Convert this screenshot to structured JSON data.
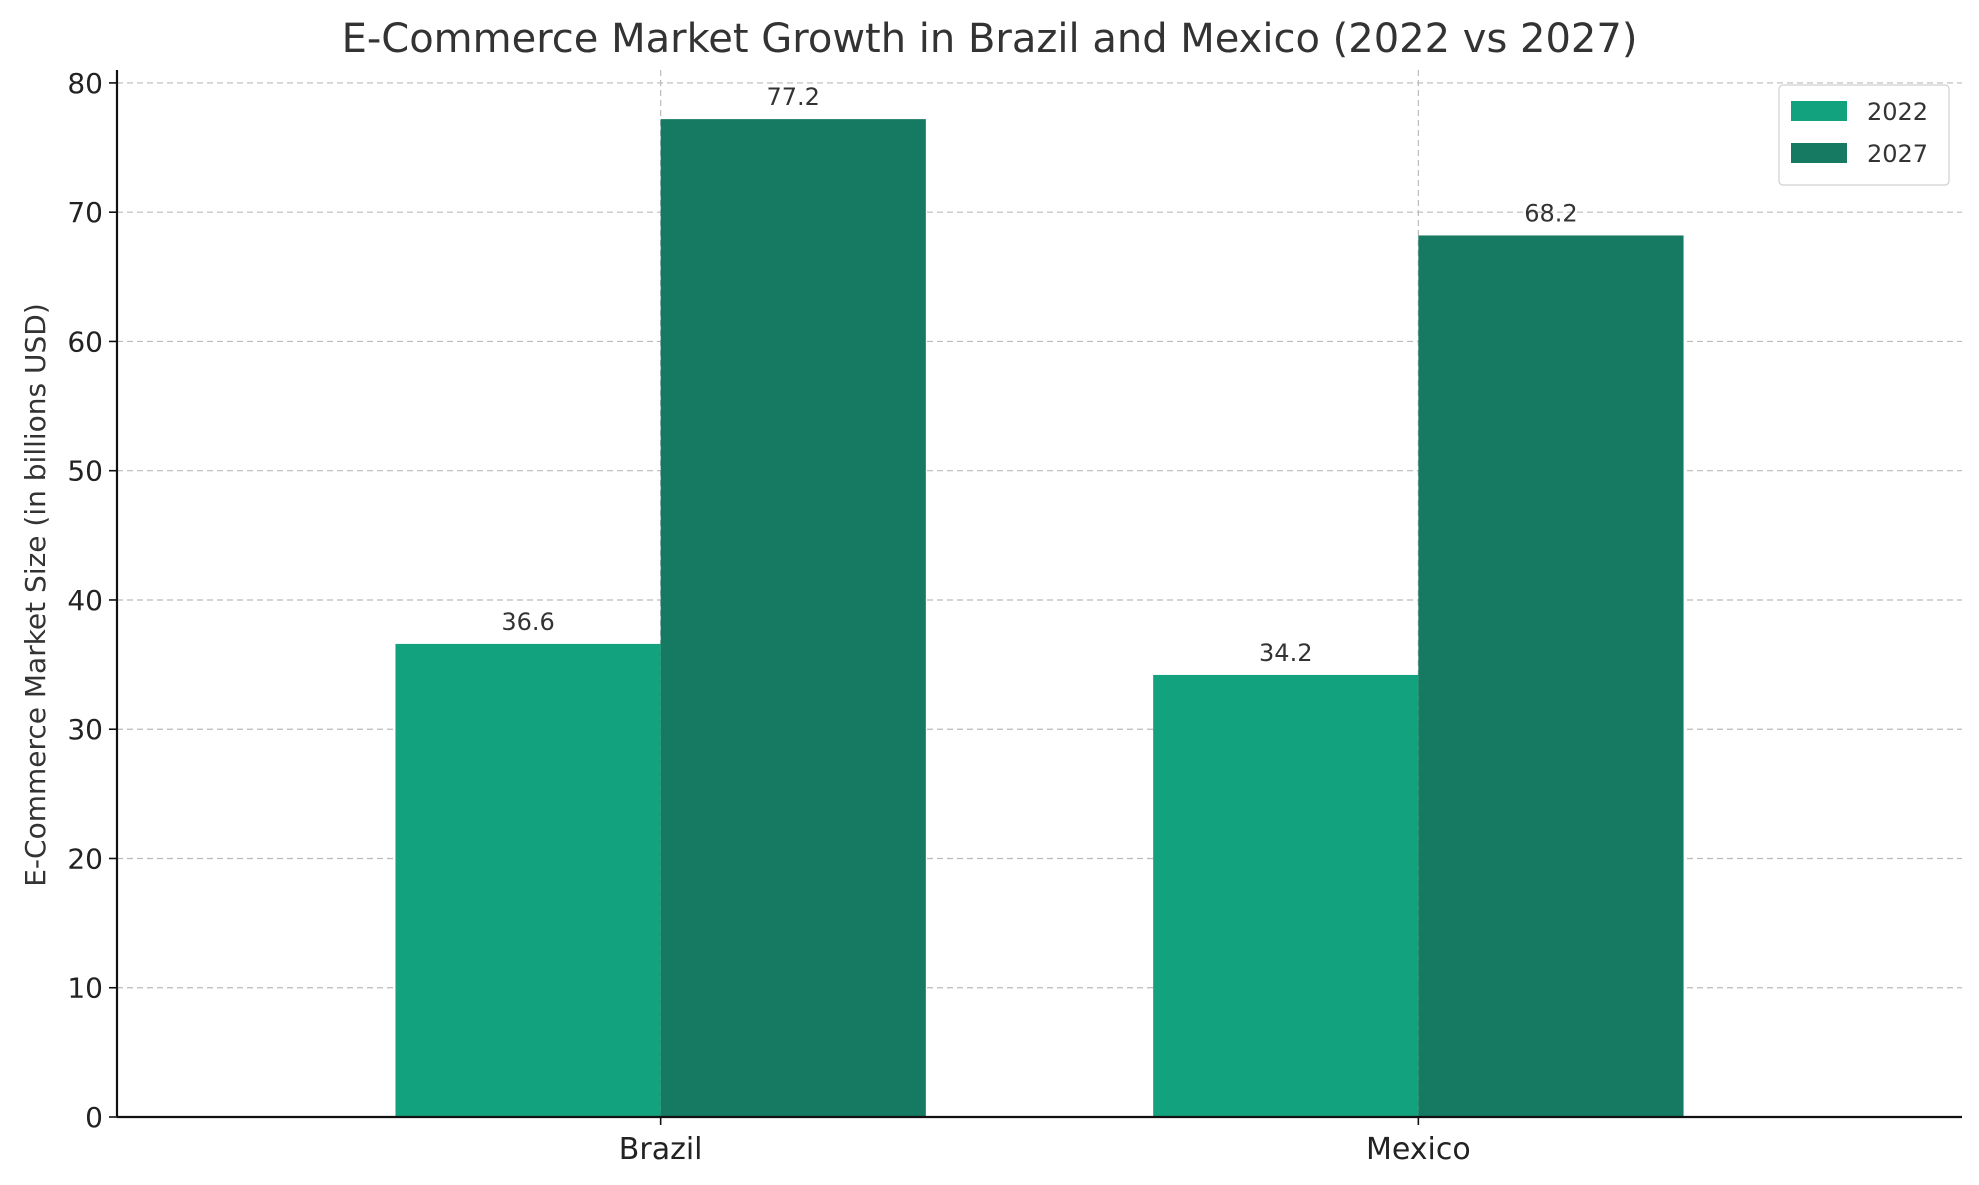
{
  "chart_data": {
    "type": "bar",
    "title": "E-Commerce Market Growth in Brazil and Mexico (2022 vs 2027)",
    "xlabel": "",
    "ylabel": "E-Commerce Market Size (in billions USD)",
    "categories": [
      "Brazil",
      "Mexico"
    ],
    "series": [
      {
        "name": "2022",
        "values": [
          36.6,
          34.2
        ],
        "color": "#12a37e"
      },
      {
        "name": "2027",
        "values": [
          77.2,
          68.2
        ],
        "color": "#167a62"
      }
    ],
    "ylim": [
      0,
      81
    ],
    "yticks": [
      0,
      10,
      20,
      30,
      40,
      50,
      60,
      70,
      80
    ],
    "grid": true,
    "legend_position": "top-right",
    "data_labels": true
  }
}
